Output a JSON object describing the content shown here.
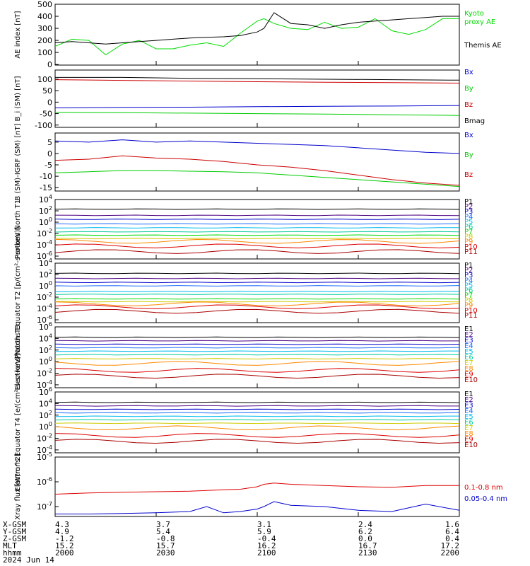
{
  "figure": {
    "ephemeris": {
      "labels": [
        "X-GSM",
        "Y-GSM",
        "Z-GSM",
        "MLT",
        "hhmm",
        "2024 Jun 14"
      ],
      "columns": [
        [
          "4.3",
          "4.9",
          "-1.2",
          "15.2",
          "2000"
        ],
        [
          "3.7",
          "5.4",
          "-0.8",
          "15.7",
          "2030"
        ],
        [
          "3.1",
          "5.9",
          "-0.4",
          "16.2",
          "2100"
        ],
        [
          "2.4",
          "6.2",
          "0.0",
          "16.7",
          "2130"
        ],
        [
          "1.6",
          "6.4",
          "0.4",
          "17.2",
          "2200"
        ]
      ]
    }
  },
  "chart_data": [
    {
      "type": "line",
      "ylabel": "AE index [nT]",
      "ylim": [
        -5,
        500
      ],
      "yticks": [
        0,
        100,
        200,
        300,
        400,
        500
      ],
      "x": [
        0,
        5,
        10,
        15,
        20,
        25,
        30,
        35,
        40,
        45,
        50,
        55,
        60,
        62,
        65,
        70,
        75,
        80,
        85,
        90,
        95,
        100,
        105,
        110,
        115,
        120
      ],
      "series": [
        {
          "name": "Kyoto proxy AE",
          "color": "#00dd00",
          "values": [
            150,
            210,
            200,
            80,
            170,
            200,
            130,
            130,
            160,
            180,
            150,
            260,
            360,
            380,
            340,
            300,
            290,
            350,
            300,
            310,
            380,
            280,
            250,
            290,
            380,
            380
          ]
        },
        {
          "name": "Themis AE",
          "color": "#000000",
          "values": [
            180,
            190,
            180,
            170,
            180,
            190,
            200,
            210,
            220,
            225,
            230,
            240,
            270,
            300,
            430,
            340,
            330,
            300,
            330,
            350,
            360,
            370,
            380,
            390,
            400,
            400
          ]
        }
      ]
    },
    {
      "type": "line",
      "ylabel": "B_i (SM) [nT]",
      "ylim": [
        -110,
        140
      ],
      "yticks": [
        -100,
        -50,
        0,
        50,
        100
      ],
      "x": [
        0,
        20,
        40,
        60,
        80,
        100,
        120
      ],
      "series": [
        {
          "name": "Bx",
          "color": "#0000cc",
          "values": [
            -25,
            -23,
            -22,
            -20,
            -18,
            -17,
            -15
          ]
        },
        {
          "name": "By",
          "color": "#00cc00",
          "values": [
            -45,
            -46,
            -48,
            -50,
            -52,
            -55,
            -58
          ]
        },
        {
          "name": "Bz",
          "color": "#cc0000",
          "values": [
            98,
            95,
            92,
            89,
            87,
            85,
            83
          ]
        },
        {
          "name": "Bmag",
          "color": "#000000",
          "values": [
            108,
            108,
            104,
            102,
            100,
            98,
            96
          ]
        }
      ]
    },
    {
      "type": "line",
      "ylabel": "B (SM)-IGRF (SM) [nT]",
      "ylim": [
        -16.5,
        9
      ],
      "yticks": [
        -15,
        -10,
        -5,
        0,
        5
      ],
      "x": [
        0,
        10,
        20,
        30,
        40,
        50,
        60,
        70,
        80,
        90,
        100,
        110,
        120
      ],
      "series": [
        {
          "name": "Bx",
          "color": "#0000cc",
          "values": [
            5.5,
            5.0,
            6.0,
            5.0,
            5.5,
            5.0,
            4.5,
            4.0,
            3.5,
            2.5,
            1.5,
            0.5,
            0.0
          ]
        },
        {
          "name": "By",
          "color": "#00cc00",
          "values": [
            -8.5,
            -8.0,
            -7.5,
            -7.5,
            -7.8,
            -8.0,
            -8.5,
            -9.5,
            -10.5,
            -11.5,
            -12.5,
            -13.5,
            -14.5
          ]
        },
        {
          "name": "Bz",
          "color": "#cc0000",
          "values": [
            -3.0,
            -2.5,
            -1.0,
            -2.0,
            -2.5,
            -3.5,
            -5.0,
            -6.0,
            -7.5,
            -9.5,
            -11.5,
            -13.0,
            -14.0
          ]
        }
      ]
    },
    {
      "type": "line",
      "ylabel": "Protons North T1",
      "log": true,
      "ylim": [
        -6.5,
        4
      ],
      "yticks": [
        4,
        2,
        0,
        -2,
        -4,
        -6
      ],
      "channels": [
        "P1",
        "P2",
        "P3",
        "P4",
        "P5",
        "P6",
        "P7",
        "P8",
        "P9",
        "P10",
        "P11"
      ],
      "colors": [
        "#000000",
        "#4b0082",
        "#0000cc",
        "#1e6eff",
        "#00bbee",
        "#00cc99",
        "#00dd00",
        "#cccc00",
        "#ff8800",
        "#dd0000",
        "#aa0000"
      ],
      "log_levels": [
        2.3,
        1.2,
        0.5,
        -0.3,
        -1.0,
        -1.7,
        -2.3,
        -2.9,
        -3.4,
        -4.2,
        -5.2
      ]
    },
    {
      "type": "line",
      "ylabel": "Protons Equator T2 [p/(cm²-s-sr-keV)]",
      "log": true,
      "ylim": [
        -6.5,
        4
      ],
      "yticks": [
        4,
        2,
        0,
        -2,
        -4,
        -6
      ],
      "channels": [
        "P1",
        "P2",
        "P3",
        "P4",
        "P5",
        "P6",
        "P7",
        "P8",
        "P9",
        "P10",
        "P11"
      ],
      "colors": [
        "#000000",
        "#4b0082",
        "#0000cc",
        "#1e6eff",
        "#00bbee",
        "#00cc99",
        "#00dd00",
        "#cccc00",
        "#ff8800",
        "#dd0000",
        "#aa0000"
      ],
      "log_levels": [
        2.2,
        1.3,
        0.6,
        0.0,
        -1.0,
        -1.5,
        -2.3,
        -2.8,
        -3.2,
        -3.7,
        -4.5
      ]
    },
    {
      "type": "line",
      "ylabel": "Electrons North T3",
      "log": true,
      "ylim": [
        -4.5,
        6
      ],
      "yticks": [
        6,
        4,
        2,
        0,
        -2,
        -4
      ],
      "channels": [
        "E1",
        "E2",
        "E3",
        "E4",
        "E5",
        "E6",
        "E7",
        "E8",
        "E9",
        "E10"
      ],
      "colors": [
        "#000000",
        "#4b0082",
        "#0000cc",
        "#1e6eff",
        "#00bbee",
        "#00cc99",
        "#cccc00",
        "#ff8800",
        "#dd0000",
        "#aa0000"
      ],
      "log_levels": [
        4.2,
        3.6,
        3.0,
        2.4,
        1.8,
        1.2,
        0.5,
        -0.3,
        -1.5,
        -2.5
      ]
    },
    {
      "type": "line",
      "ylabel": "Electrons Equator T4 [e/(cm²-s-sr-keV)]",
      "log": true,
      "ylim": [
        -4.5,
        6
      ],
      "yticks": [
        6,
        4,
        2,
        0,
        -2,
        -4
      ],
      "channels": [
        "E1",
        "E2",
        "E3",
        "E4",
        "E5",
        "E6",
        "E7",
        "E8",
        "E9",
        "E10"
      ],
      "colors": [
        "#000000",
        "#4b0082",
        "#0000cc",
        "#1e6eff",
        "#00bbee",
        "#00cc99",
        "#cccc00",
        "#ff8800",
        "#dd0000",
        "#aa0000"
      ],
      "log_levels": [
        4.2,
        3.6,
        3.0,
        2.4,
        1.8,
        1.2,
        0.6,
        -0.2,
        -1.5,
        -2.5
      ]
    },
    {
      "type": "line",
      "ylabel": "Xray flux [W/m^2]",
      "log": true,
      "ylim": [
        -7.4,
        -5
      ],
      "yticks": [
        -5,
        -6,
        -7
      ],
      "x": [
        0,
        10,
        20,
        30,
        40,
        45,
        50,
        55,
        60,
        62,
        65,
        70,
        80,
        90,
        100,
        110,
        120
      ],
      "series": [
        {
          "name": "0.1-0.8 nm",
          "color": "#dd0000",
          "values": [
            -6.5,
            -6.45,
            -6.42,
            -6.4,
            -6.38,
            -6.35,
            -6.32,
            -6.3,
            -6.2,
            -6.1,
            -6.05,
            -6.1,
            -6.15,
            -6.2,
            -6.22,
            -6.15,
            -6.15
          ]
        },
        {
          "name": "0.05-0.4 nm",
          "color": "#0000cc",
          "values": [
            -7.3,
            -7.3,
            -7.28,
            -7.25,
            -7.2,
            -7.0,
            -7.25,
            -7.2,
            -7.1,
            -7.0,
            -6.8,
            -6.95,
            -7.0,
            -7.15,
            -7.2,
            -6.9,
            -7.15
          ]
        }
      ]
    }
  ]
}
